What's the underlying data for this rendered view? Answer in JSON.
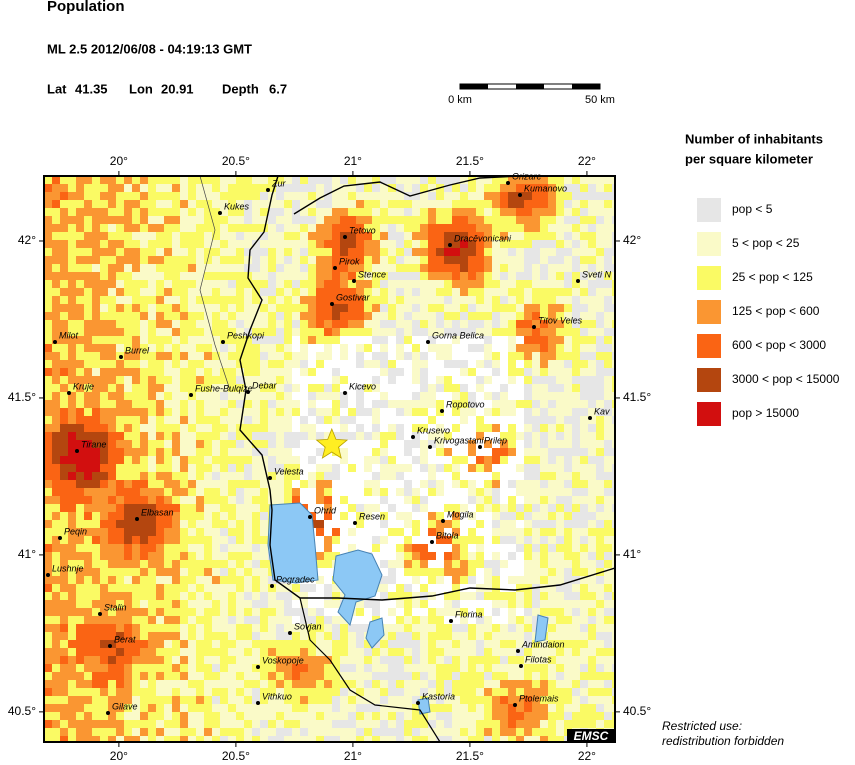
{
  "header": {
    "title": "Population",
    "event": "ML 2.5  2012/06/08 - 04:19:13 GMT",
    "lat_label": "Lat",
    "lat": 41.35,
    "lon_label": "Lon",
    "lon": 20.91,
    "depth_label": "Depth",
    "depth": 6.7
  },
  "scale_bar": {
    "start": "0 km",
    "end": "50 km"
  },
  "map": {
    "xlim": [
      19.68,
      22.12
    ],
    "ylim": [
      40.404,
      42.207
    ],
    "xticks": [
      {
        "value": 20,
        "label": "20°"
      },
      {
        "value": 20.5,
        "label": "20.5°"
      },
      {
        "value": 21,
        "label": "21°"
      },
      {
        "value": 21.5,
        "label": "21.5°"
      },
      {
        "value": 22,
        "label": "22°"
      }
    ],
    "yticks": [
      {
        "value": 42,
        "label": "42°"
      },
      {
        "value": 41.5,
        "label": "41.5°"
      },
      {
        "value": 41,
        "label": "41°"
      },
      {
        "value": 40.5,
        "label": "40.5°"
      }
    ],
    "cities": [
      "Zur",
      "Kukes",
      "Tetovo",
      "Pirok",
      "Stence",
      "Gostivar",
      "Peshkopi",
      "Burrel",
      "Milot",
      "Kruje",
      "Fushe-Bulqize",
      "Debar",
      "Kicevo",
      "Tirane",
      "Velesta",
      "Ohrid",
      "Resen",
      "Elbasan",
      "Peqin",
      "Lushnje",
      "Pogradec",
      "Stalin",
      "Sovjan",
      "Berat",
      "Voskopoje",
      "Vithkuo",
      "Gilave",
      "Kastoria",
      "Ptolemais",
      "Filotas",
      "Amindaion",
      "Florina",
      "Bitola",
      "Mogila",
      "Krusevo",
      "Krivogastani",
      "Prilep",
      "Ropotovo",
      "Gorna Belica",
      "Titov Veles",
      "Sveti N",
      "Dracēvonicani",
      "Orizare",
      "Kumanovo",
      "Kav"
    ],
    "credit": "EMSC"
  },
  "legend": {
    "title": [
      "Number of inhabitants",
      "per square kilometer"
    ],
    "entries": [
      {
        "label": "pop < 5",
        "color": "#e6e6e6"
      },
      {
        "label": "5 < pop < 25",
        "color": "#fafac8"
      },
      {
        "label": "25 < pop < 125",
        "color": "#fafa64"
      },
      {
        "label": "125 < pop < 600",
        "color": "#fa9632"
      },
      {
        "label": "600 < pop < 3000",
        "color": "#fa6414"
      },
      {
        "label": "3000 < pop < 15000",
        "color": "#b4460f"
      },
      {
        "label": "pop > 15000",
        "color": "#d20f0f"
      }
    ]
  },
  "note": [
    "Restricted use:",
    "redistribution forbidden"
  ]
}
